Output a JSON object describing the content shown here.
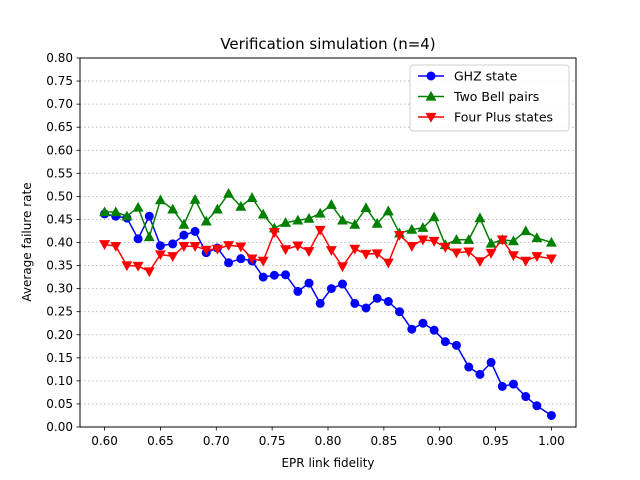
{
  "chart_data": {
    "type": "line",
    "title": "Verification simulation (n=4)",
    "xlabel": "EPR link fidelity",
    "ylabel": "Average failure rate",
    "xlim": [
      0.578,
      1.022
    ],
    "ylim": [
      0.0,
      0.8
    ],
    "xticks": [
      "0.60",
      "0.65",
      "0.70",
      "0.75",
      "0.80",
      "0.85",
      "0.90",
      "0.95",
      "1.00"
    ],
    "yticks": [
      "0.00",
      "0.05",
      "0.10",
      "0.15",
      "0.20",
      "0.25",
      "0.30",
      "0.35",
      "0.40",
      "0.45",
      "0.50",
      "0.55",
      "0.60",
      "0.65",
      "0.70",
      "0.75",
      "0.80"
    ],
    "grid": "horizontal dotted",
    "legend_position": "top-right",
    "x": [
      0.6,
      0.61,
      0.62,
      0.63,
      0.64,
      0.65,
      0.661,
      0.671,
      0.681,
      0.691,
      0.701,
      0.711,
      0.722,
      0.732,
      0.742,
      0.752,
      0.762,
      0.773,
      0.783,
      0.793,
      0.803,
      0.813,
      0.824,
      0.834,
      0.844,
      0.854,
      0.864,
      0.875,
      0.885,
      0.895,
      0.905,
      0.915,
      0.926,
      0.936,
      0.946,
      0.956,
      0.966,
      0.977,
      0.987,
      1.0
    ],
    "series": [
      {
        "name": "GHZ state",
        "color": "#0000ff",
        "marker": "circle",
        "values": [
          0.462,
          0.457,
          0.453,
          0.408,
          0.457,
          0.393,
          0.397,
          0.416,
          0.424,
          0.378,
          0.388,
          0.356,
          0.365,
          0.36,
          0.325,
          0.329,
          0.33,
          0.294,
          0.312,
          0.268,
          0.3,
          0.31,
          0.268,
          0.258,
          0.279,
          0.272,
          0.25,
          0.212,
          0.225,
          0.21,
          0.185,
          0.177,
          0.13,
          0.114,
          0.14,
          0.088,
          0.093,
          0.066,
          0.046,
          0.025
        ]
      },
      {
        "name": "Two Bell pairs",
        "color": "#008000",
        "marker": "triangle-up",
        "values": [
          0.466,
          0.466,
          0.457,
          0.476,
          0.412,
          0.492,
          0.472,
          0.439,
          0.493,
          0.446,
          0.472,
          0.506,
          0.478,
          0.497,
          0.461,
          0.431,
          0.443,
          0.448,
          0.452,
          0.463,
          0.482,
          0.448,
          0.439,
          0.475,
          0.441,
          0.468,
          0.42,
          0.428,
          0.432,
          0.455,
          0.395,
          0.406,
          0.406,
          0.453,
          0.398,
          0.406,
          0.403,
          0.425,
          0.41,
          0.4
        ]
      },
      {
        "name": "Four Plus states",
        "color": "#ff0000",
        "marker": "triangle-down",
        "values": [
          0.396,
          0.392,
          0.35,
          0.349,
          0.337,
          0.374,
          0.37,
          0.392,
          0.392,
          0.384,
          0.386,
          0.394,
          0.391,
          0.365,
          0.36,
          0.422,
          0.385,
          0.393,
          0.381,
          0.427,
          0.383,
          0.348,
          0.386,
          0.375,
          0.376,
          0.356,
          0.416,
          0.392,
          0.406,
          0.403,
          0.39,
          0.378,
          0.38,
          0.359,
          0.377,
          0.406,
          0.372,
          0.36,
          0.37,
          0.365
        ]
      }
    ]
  }
}
